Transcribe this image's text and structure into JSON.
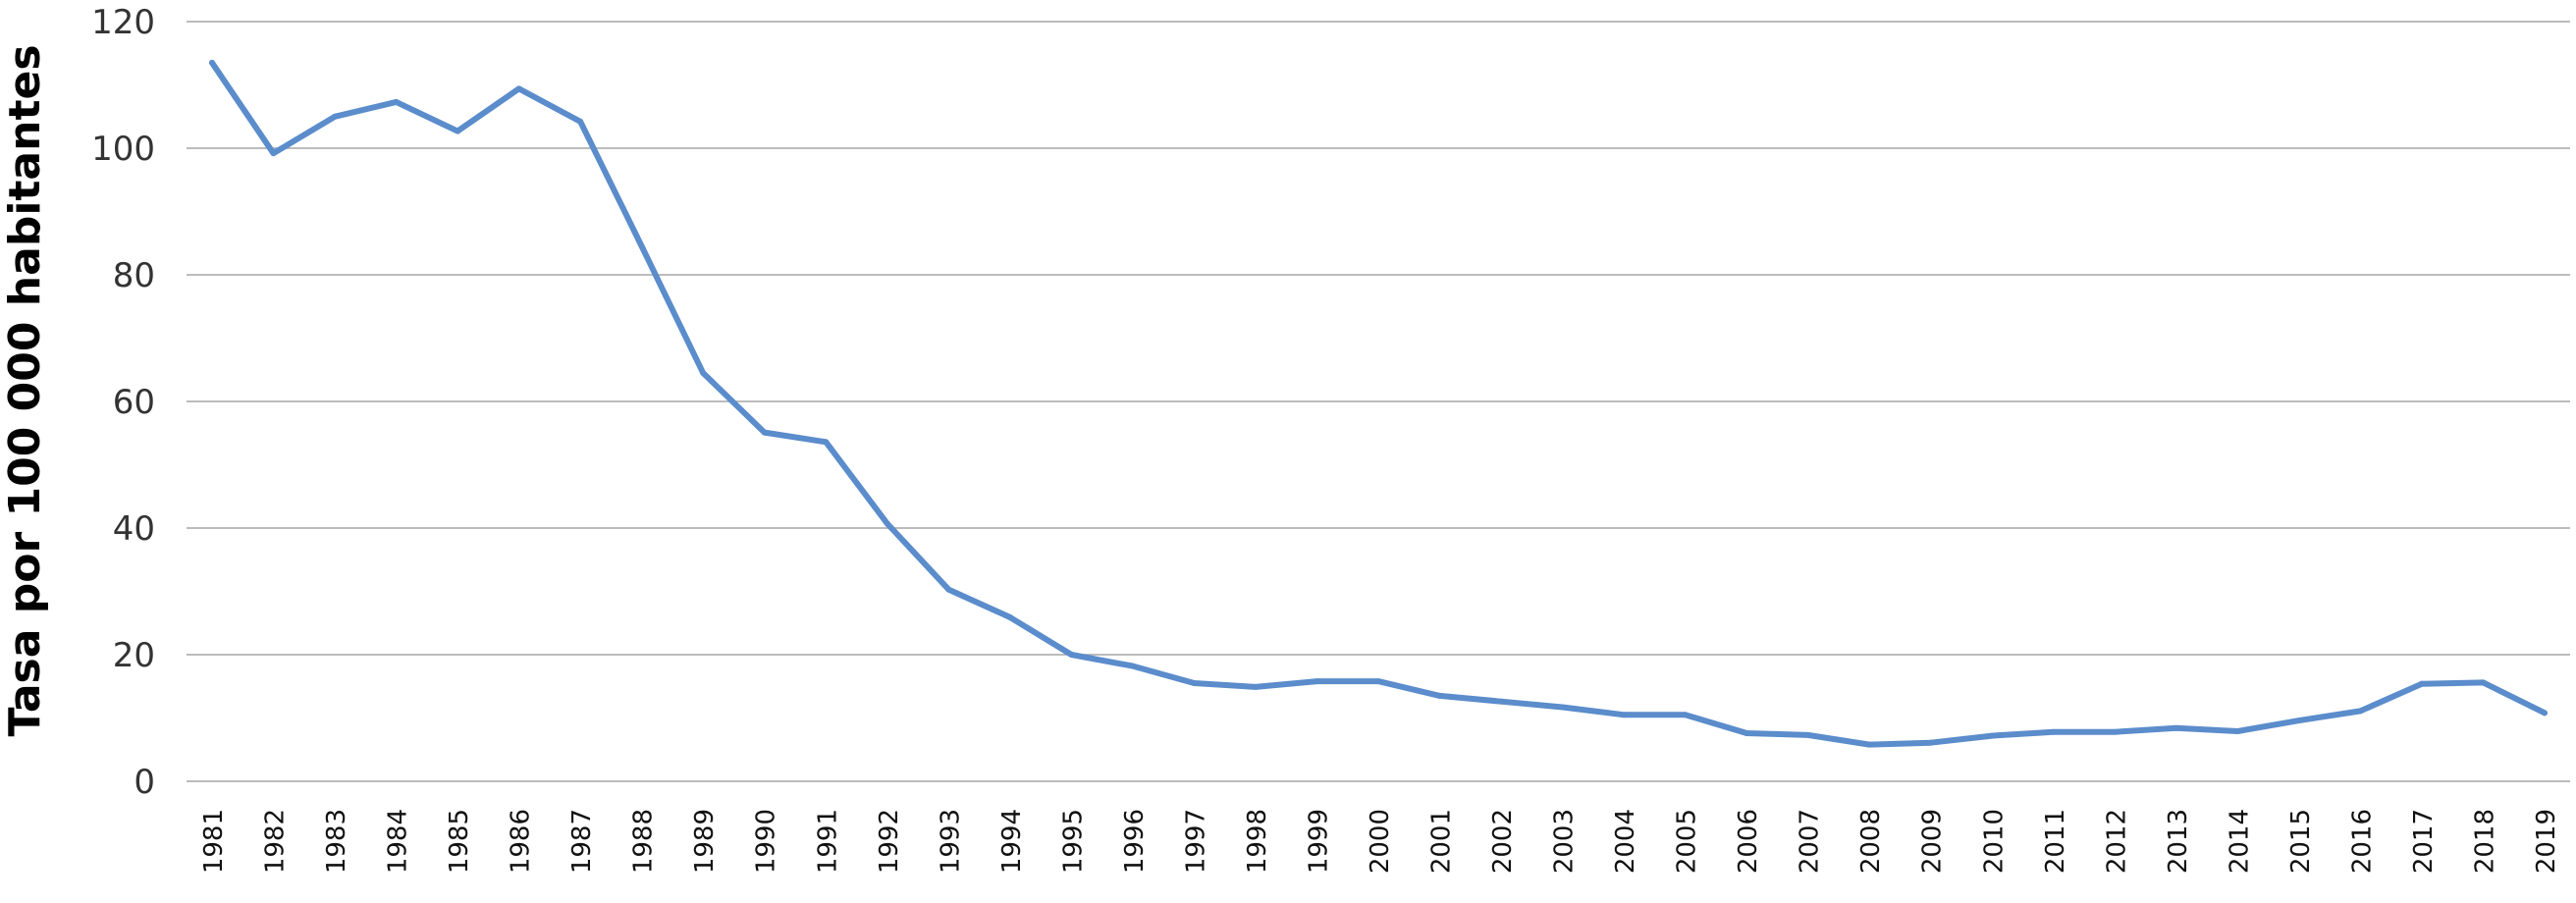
{
  "chart_data": {
    "type": "line",
    "title": "",
    "xlabel": "",
    "ylabel": "Tasa por 100 000 habitantes",
    "ylim": [
      0,
      120
    ],
    "yticks": [
      0,
      20,
      40,
      60,
      80,
      100,
      120
    ],
    "grid": true,
    "legend": "none",
    "line_color": "#5B8CCB",
    "grid_color": "#A6A6A6",
    "x": [
      "1981",
      "1982",
      "1983",
      "1984",
      "1985",
      "1986",
      "1987",
      "1988",
      "1989",
      "1990",
      "1991",
      "1992",
      "1993",
      "1994",
      "1995",
      "1996",
      "1997",
      "1998",
      "1999",
      "2000",
      "2001",
      "2002",
      "2003",
      "2004",
      "2005",
      "2006",
      "2007",
      "2008",
      "2009",
      "2010",
      "2011",
      "2012",
      "2013",
      "2014",
      "2015",
      "2016",
      "2017",
      "2018",
      "2019"
    ],
    "series": [
      {
        "values": [
          113.5,
          99.2,
          105.0,
          107.3,
          102.7,
          109.4,
          104.2,
          84.5,
          64.5,
          55.1,
          53.6,
          40.7,
          30.3,
          25.9,
          20.0,
          18.2,
          15.5,
          14.9,
          15.8,
          15.8,
          13.5,
          12.6,
          11.7,
          10.5,
          10.5,
          7.6,
          7.3,
          5.8,
          6.1,
          7.2,
          7.8,
          7.8,
          8.4,
          7.9,
          9.6,
          11.1,
          15.4,
          15.6,
          10.8
        ]
      }
    ]
  }
}
